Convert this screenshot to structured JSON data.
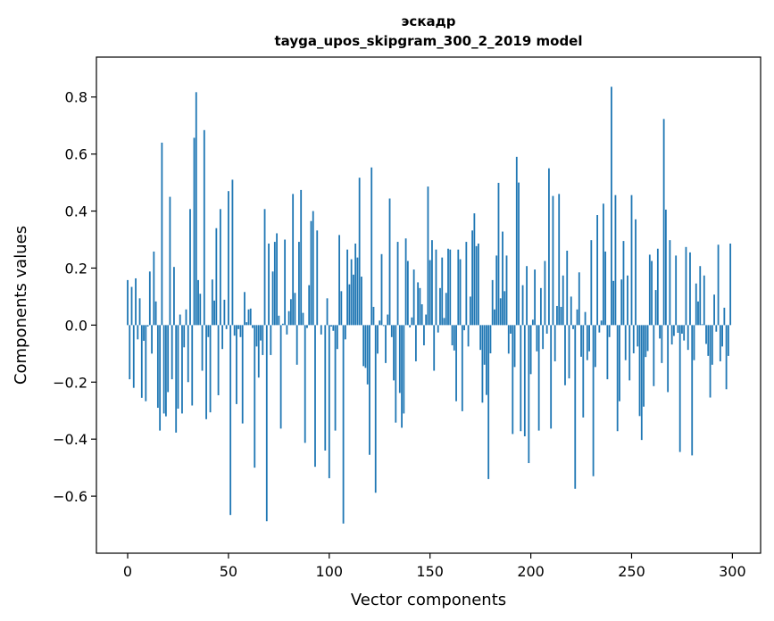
{
  "chart_data": {
    "type": "bar",
    "title": "эскадр",
    "subtitle": "tayga_upos_skipgram_300_2_2019 model",
    "xlabel": "Vector components",
    "ylabel": "Components values",
    "xlim": [
      -15.5,
      314
    ],
    "ylim": [
      -0.8,
      0.94
    ],
    "xticks": [
      0,
      50,
      100,
      150,
      200,
      250,
      300
    ],
    "xtick_labels": [
      "0",
      "50",
      "100",
      "150",
      "200",
      "250",
      "300"
    ],
    "yticks": [
      -0.6,
      -0.4,
      -0.2,
      0.0,
      0.2,
      0.4,
      0.6,
      0.8
    ],
    "ytick_labels": [
      "−0.6",
      "−0.4",
      "−0.2",
      "0.0",
      "0.2",
      "0.4",
      "0.6",
      "0.8"
    ],
    "grid": false,
    "bar_color": "#1f77b4",
    "values": [
      0.158,
      -0.19,
      0.134,
      -0.22,
      0.164,
      -0.05,
      0.094,
      -0.255,
      -0.055,
      -0.267,
      -0.005,
      0.188,
      -0.1,
      0.258,
      0.083,
      -0.29,
      -0.37,
      0.64,
      -0.31,
      -0.32,
      -0.235,
      0.45,
      -0.19,
      0.204,
      -0.377,
      -0.293,
      0.037,
      -0.31,
      -0.078,
      0.055,
      -0.2,
      0.407,
      -0.282,
      0.657,
      0.817,
      0.158,
      0.11,
      -0.16,
      0.684,
      -0.33,
      -0.042,
      -0.306,
      0.16,
      0.086,
      0.34,
      -0.246,
      0.407,
      -0.084,
      0.089,
      -0.014,
      0.47,
      -0.666,
      0.51,
      -0.037,
      -0.277,
      -0.014,
      -0.042,
      -0.345,
      0.116,
      0.01,
      0.055,
      0.058,
      -0.01,
      -0.5,
      -0.075,
      -0.184,
      -0.054,
      -0.105,
      0.407,
      -0.688,
      0.286,
      -0.105,
      0.188,
      0.292,
      0.322,
      0.033,
      -0.363,
      0.005,
      0.3,
      -0.033,
      0.049,
      0.091,
      0.46,
      0.113,
      -0.139,
      0.292,
      0.474,
      0.043,
      -0.413,
      -0.01,
      0.14,
      0.365,
      0.4,
      -0.497,
      0.332,
      0.0,
      -0.033,
      0.0,
      -0.44,
      0.094,
      -0.537,
      -0.005,
      -0.02,
      -0.37,
      -0.084,
      0.316,
      0.119,
      -0.696,
      -0.05,
      0.265,
      0.143,
      0.231,
      0.177,
      0.286,
      0.237,
      0.517,
      0.17,
      -0.144,
      -0.15,
      -0.208,
      -0.455,
      0.553,
      0.064,
      -0.588,
      -0.1,
      0.016,
      0.249,
      -0.003,
      -0.133,
      0.037,
      0.444,
      -0.042,
      -0.194,
      -0.342,
      0.292,
      -0.238,
      -0.36,
      -0.31,
      0.304,
      0.225,
      -0.008,
      0.027,
      0.195,
      -0.127,
      0.15,
      0.13,
      0.073,
      -0.071,
      0.037,
      0.486,
      0.228,
      0.298,
      -0.16,
      0.265,
      -0.026,
      0.13,
      0.237,
      0.025,
      0.113,
      0.268,
      0.265,
      -0.071,
      -0.089,
      -0.267,
      0.265,
      0.231,
      -0.302,
      -0.018,
      0.292,
      -0.075,
      0.1,
      0.332,
      0.392,
      0.277,
      0.286,
      -0.087,
      -0.272,
      -0.139,
      -0.245,
      -0.54,
      -0.099,
      0.158,
      0.055,
      0.244,
      0.499,
      0.094,
      0.328,
      0.119,
      0.244,
      -0.1,
      -0.03,
      -0.382,
      -0.147,
      0.59,
      0.5,
      -0.372,
      0.14,
      -0.39,
      0.207,
      -0.484,
      -0.172,
      0.019,
      0.195,
      -0.092,
      -0.37,
      0.13,
      -0.084,
      0.225,
      -0.03,
      0.55,
      -0.363,
      0.453,
      -0.127,
      0.067,
      0.46,
      0.064,
      0.174,
      -0.211,
      0.261,
      -0.187,
      0.1,
      -0.014,
      -0.574,
      0.055,
      0.185,
      -0.111,
      -0.324,
      0.046,
      -0.123,
      -0.092,
      0.298,
      -0.53,
      -0.147,
      0.386,
      -0.026,
      0.016,
      0.426,
      0.258,
      -0.19,
      -0.042,
      0.836,
      0.155,
      0.456,
      -0.372,
      -0.267,
      0.16,
      0.295,
      -0.123,
      0.174,
      -0.194,
      0.456,
      -0.099,
      0.371,
      -0.075,
      -0.319,
      -0.403,
      -0.286,
      -0.112,
      -0.091,
      0.247,
      0.225,
      -0.214,
      0.123,
      0.268,
      -0.047,
      -0.133,
      0.723,
      0.405,
      -0.235,
      0.298,
      -0.068,
      -0.038,
      0.244,
      -0.027,
      -0.445,
      -0.03,
      -0.054,
      0.274,
      -0.087,
      0.255,
      -0.457,
      -0.123,
      0.146,
      0.083,
      0.207,
      0.003,
      0.174,
      -0.066,
      -0.108,
      -0.254,
      -0.139,
      0.107,
      -0.023,
      0.282,
      -0.127,
      -0.075,
      0.061,
      -0.225,
      -0.108,
      0.286
    ]
  }
}
